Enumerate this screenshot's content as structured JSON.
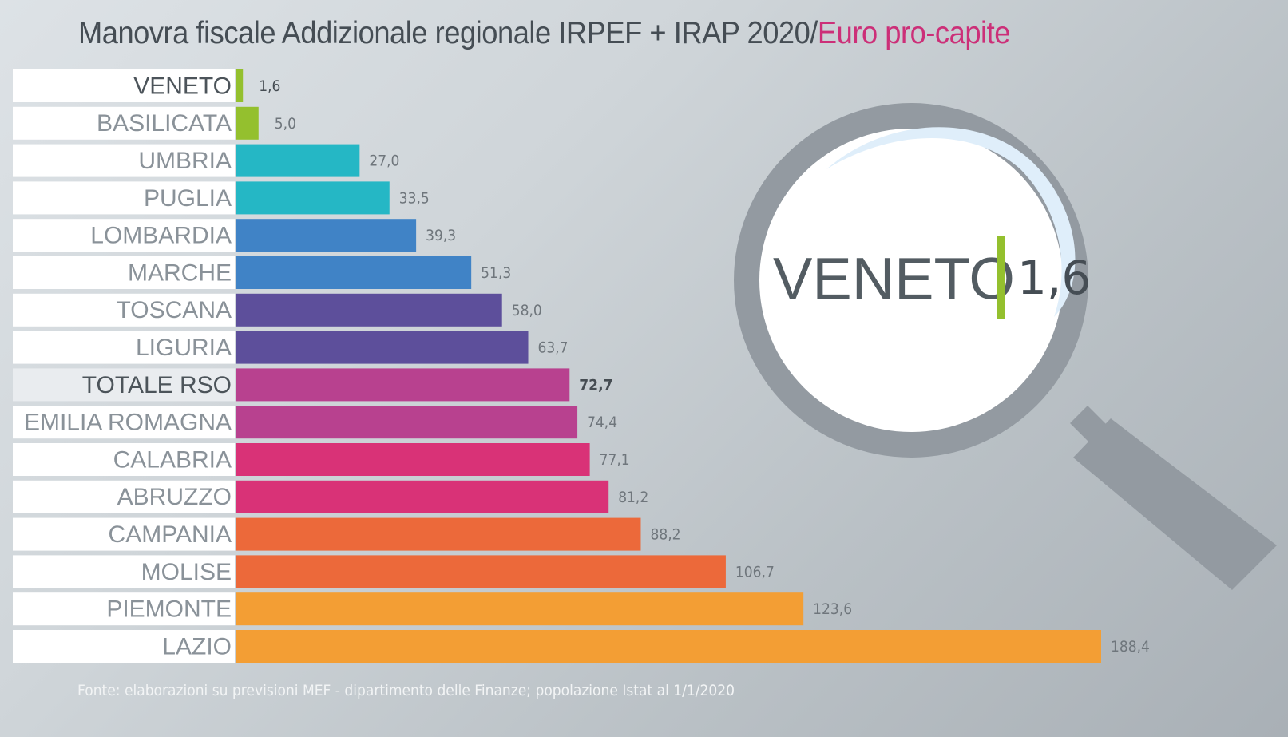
{
  "header": {
    "title_main": "Manovra fiscale Addizionale regionale IRPEF + IRAP 2020/",
    "title_accent": "Euro pro-capite"
  },
  "colors": {
    "accent": "#cc2f78",
    "green": "#94c02e",
    "teal": "#25b7c5",
    "blue": "#4083c6",
    "purple": "#5d4f9b",
    "magenta": "#b8418f",
    "pink": "#d93277",
    "orange_red": "#ec693a",
    "orange": "#f39e34"
  },
  "chart_data": {
    "type": "bar",
    "orientation": "horizontal",
    "title": "Manovra fiscale Addizionale regionale IRPEF + IRAP 2020/Euro pro-capite",
    "xlabel": "",
    "ylabel": "",
    "unit": "Euro pro-capite",
    "grid": false,
    "legend": "none",
    "xlim": [
      0,
      188.4
    ],
    "categories": [
      "VENETO",
      "BASILICATA",
      "UMBRIA",
      "PUGLIA",
      "LOMBARDIA",
      "MARCHE",
      "TOSCANA",
      "LIGURIA",
      "TOTALE RSO",
      "EMILIA ROMAGNA",
      "CALABRIA",
      "ABRUZZO",
      "CAMPANIA",
      "MOLISE",
      "PIEMONTE",
      "LAZIO"
    ],
    "values": [
      1.6,
      5.0,
      27.0,
      33.5,
      39.3,
      51.3,
      58.0,
      63.7,
      72.7,
      74.4,
      77.1,
      81.2,
      88.2,
      106.7,
      123.6,
      188.4
    ],
    "value_labels": [
      "1,6",
      "5,0",
      "27,0",
      "33,5",
      "39,3",
      "51,3",
      "58,0",
      "63,7",
      "72,7",
      "74,4",
      "77,1",
      "81,2",
      "88,2",
      "106,7",
      "123,6",
      "188,4"
    ],
    "bar_colors": [
      "#94c02e",
      "#94c02e",
      "#25b7c5",
      "#25b7c5",
      "#4083c6",
      "#4083c6",
      "#5d4f9b",
      "#5d4f9b",
      "#b8418f",
      "#b8418f",
      "#d93277",
      "#d93277",
      "#ec693a",
      "#ec693a",
      "#f39e34",
      "#f39e34"
    ],
    "highlight": [
      "VENETO",
      "TOTALE RSO"
    ]
  },
  "callout": {
    "region": "VENETO",
    "value": "1,6"
  },
  "footer": {
    "source": "Fonte: elaborazioni su previsioni MEF - dipartimento delle Finanze; popolazione Istat al 1/1/2020"
  }
}
